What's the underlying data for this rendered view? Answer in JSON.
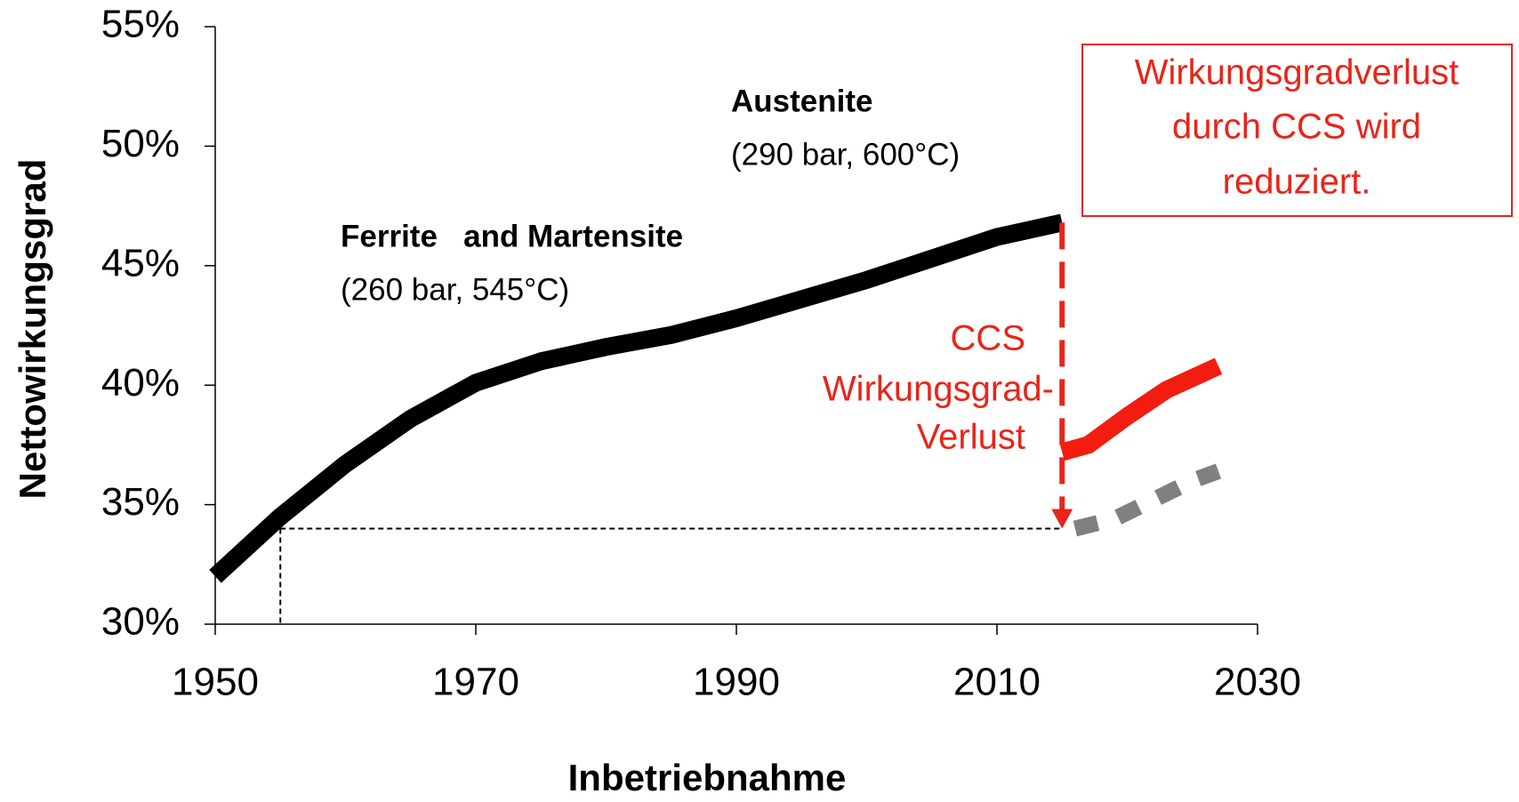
{
  "chart_data": {
    "type": "line",
    "xlabel": "Inbetriebnahme",
    "ylabel": "Nettowirkungsgrad",
    "xlim": [
      1950,
      2030
    ],
    "ylim": [
      30,
      55
    ],
    "xticks": [
      1950,
      1970,
      1990,
      2010,
      2030
    ],
    "yticks": [
      {
        "value": 30,
        "label": "30%"
      },
      {
        "value": 35,
        "label": "35%"
      },
      {
        "value": 40,
        "label": "40%"
      },
      {
        "value": 45,
        "label": "45%"
      },
      {
        "value": 50,
        "label": "50%"
      },
      {
        "value": 55,
        "label": "55%"
      }
    ],
    "series": [
      {
        "color": "#000000",
        "style": "solid",
        "x": [
          1950,
          1955,
          1960,
          1965,
          1970,
          1975,
          1980,
          1985,
          1990,
          1995,
          2000,
          2005,
          2010,
          2015
        ],
        "values": [
          32,
          34.5,
          36.7,
          38.6,
          40.1,
          41.0,
          41.6,
          42.1,
          42.8,
          43.6,
          44.4,
          45.3,
          46.2,
          46.8
        ]
      },
      {
        "color": "#f21d10",
        "style": "solid",
        "x": [
          2015,
          2017,
          2020,
          2023,
          2025,
          2027
        ],
        "values": [
          37.2,
          37.5,
          38.7,
          39.8,
          40.3,
          40.8
        ]
      },
      {
        "color": "#808080",
        "style": "dotted",
        "x": [
          2016,
          2019,
          2022,
          2025,
          2027
        ],
        "values": [
          34.0,
          34.4,
          35.2,
          36.0,
          36.4
        ]
      }
    ],
    "reference": {
      "x": 1955,
      "x_end": 2015,
      "y": 34
    },
    "arrow": {
      "x": 2015,
      "from": 46.8,
      "to": 34
    },
    "annotations": [
      "Austenite",
      "(290 bar, 600°C)",
      "Ferrite   and Martensite",
      "(260 bar, 545°C)",
      "CCS",
      "Wirkungsgrad-",
      "Verlust"
    ],
    "box_text": [
      "Wirkungsgradverlust",
      "durch CCS wird",
      "reduziert."
    ]
  }
}
